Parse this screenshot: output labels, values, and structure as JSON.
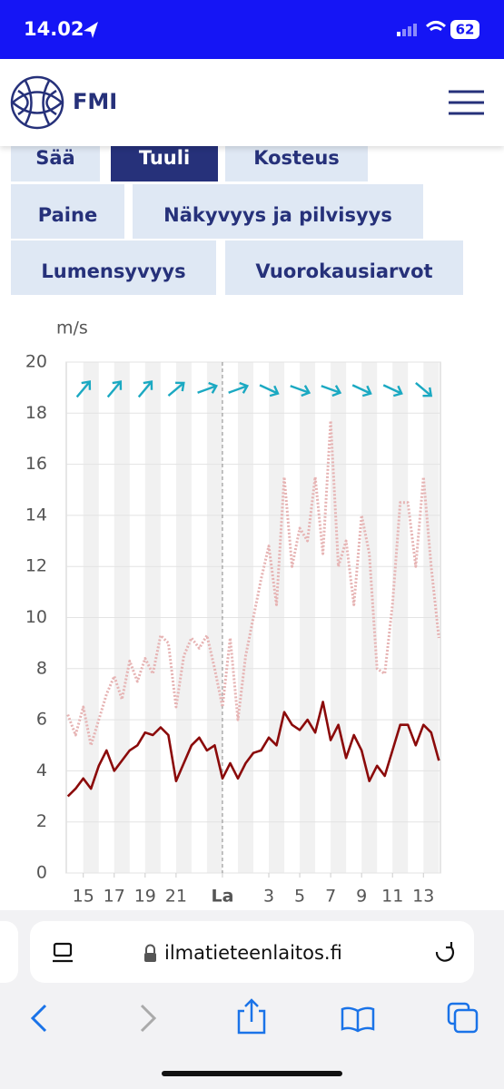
{
  "status_bar": {
    "time": "14.02",
    "battery": "62"
  },
  "header": {
    "logo": "FMI"
  },
  "tabs": [
    "Sää",
    "Tuuli",
    "Kosteus",
    "Paine",
    "Näkyvyys ja pilvisyys",
    "Lumensyvyys",
    "Vuorokausiarvot"
  ],
  "selected_tab": 1,
  "chart_data": {
    "type": "line",
    "y_label": "m/s",
    "xlim": [
      13.9,
      38.1
    ],
    "ylim": [
      0,
      20
    ],
    "yticks": [
      0,
      2,
      4,
      6,
      8,
      10,
      12,
      14,
      16,
      18,
      20
    ],
    "xticks": [
      15,
      17,
      19,
      21,
      {
        "value": 24,
        "label": "La"
      },
      {
        "value": 27,
        "label": "3"
      },
      {
        "value": 29,
        "label": "5"
      },
      {
        "value": 31,
        "label": "7"
      },
      {
        "value": 33,
        "label": "9"
      },
      {
        "value": 35,
        "label": "11"
      },
      {
        "value": 37,
        "label": "13"
      }
    ],
    "grid": true,
    "x": [
      14,
      14.5,
      15,
      15.5,
      16,
      16.5,
      17,
      17.5,
      18,
      18.5,
      19,
      19.5,
      20,
      20.5,
      21,
      21.5,
      22,
      22.5,
      23,
      23.5,
      24,
      24.5,
      25,
      25.5,
      26,
      26.5,
      27,
      27.5,
      28,
      28.5,
      29,
      29.5,
      30,
      30.5,
      31,
      31.5,
      32,
      32.5,
      33,
      33.5,
      34,
      34.5,
      35,
      35.5,
      36,
      36.5,
      37,
      37.5,
      38
    ],
    "series": [
      {
        "color": "#8b0a0a",
        "style": "solid",
        "values": [
          3.0,
          3.3,
          3.7,
          3.3,
          4.2,
          4.8,
          4.0,
          4.4,
          4.8,
          5.0,
          5.5,
          5.4,
          5.7,
          5.4,
          3.6,
          4.3,
          5.0,
          5.3,
          4.8,
          5.0,
          3.7,
          4.3,
          3.7,
          4.3,
          4.7,
          4.8,
          5.3,
          5.0,
          6.3,
          5.8,
          5.6,
          6.0,
          5.5,
          6.7,
          5.2,
          5.8,
          4.5,
          5.4,
          4.8,
          3.6,
          4.2,
          3.8,
          4.8,
          5.8,
          5.8,
          5.0,
          5.8,
          5.5,
          4.4
        ]
      },
      {
        "color": "#e6b3b3",
        "style": "dotted",
        "values": [
          6.2,
          5.4,
          6.5,
          5.0,
          6.0,
          7.0,
          7.7,
          6.8,
          8.3,
          7.5,
          8.4,
          7.8,
          9.3,
          9.0,
          6.5,
          8.5,
          9.2,
          8.8,
          9.3,
          8.0,
          6.5,
          9.2,
          6.0,
          8.5,
          10.0,
          11.5,
          12.8,
          10.5,
          15.5,
          12.0,
          13.5,
          13.0,
          15.5,
          12.5,
          17.7,
          12.0,
          13.0,
          10.5,
          14.0,
          12.5,
          8.0,
          7.8,
          10.5,
          14.5,
          14.5,
          12.0,
          15.5,
          12.0,
          9.2
        ]
      }
    ],
    "wind_arrows": {
      "color": "#1ba9c2",
      "x": [
        15,
        17,
        19,
        21,
        23,
        25,
        27,
        29,
        31,
        33,
        35,
        37
      ],
      "angles": [
        50,
        50,
        50,
        40,
        20,
        20,
        -25,
        -20,
        -20,
        -25,
        -25,
        -40
      ]
    }
  },
  "browser": {
    "url": "ilmatieteenlaitos.fi"
  }
}
